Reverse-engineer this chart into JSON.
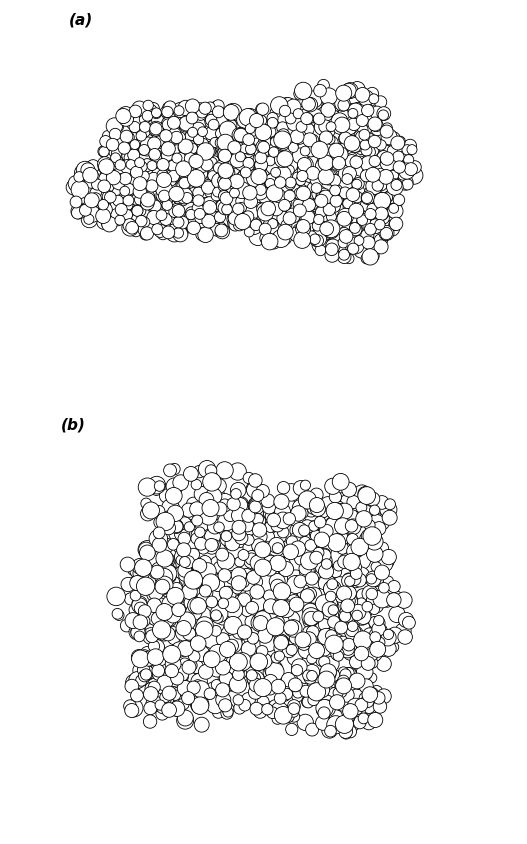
{
  "background_color": "#ffffff",
  "label_a": "(a)",
  "label_b": "(b)",
  "label_fontsize": 11,
  "label_fontweight": "bold",
  "circle_facecolor": "white",
  "circle_edgecolor": "black",
  "circle_linewidth": 0.6,
  "seed_a": 42,
  "seed_b": 137,
  "n_circles_a": 900,
  "n_circles_b": 950,
  "fig_width": 5.27,
  "fig_height": 8.44,
  "dpi": 100
}
